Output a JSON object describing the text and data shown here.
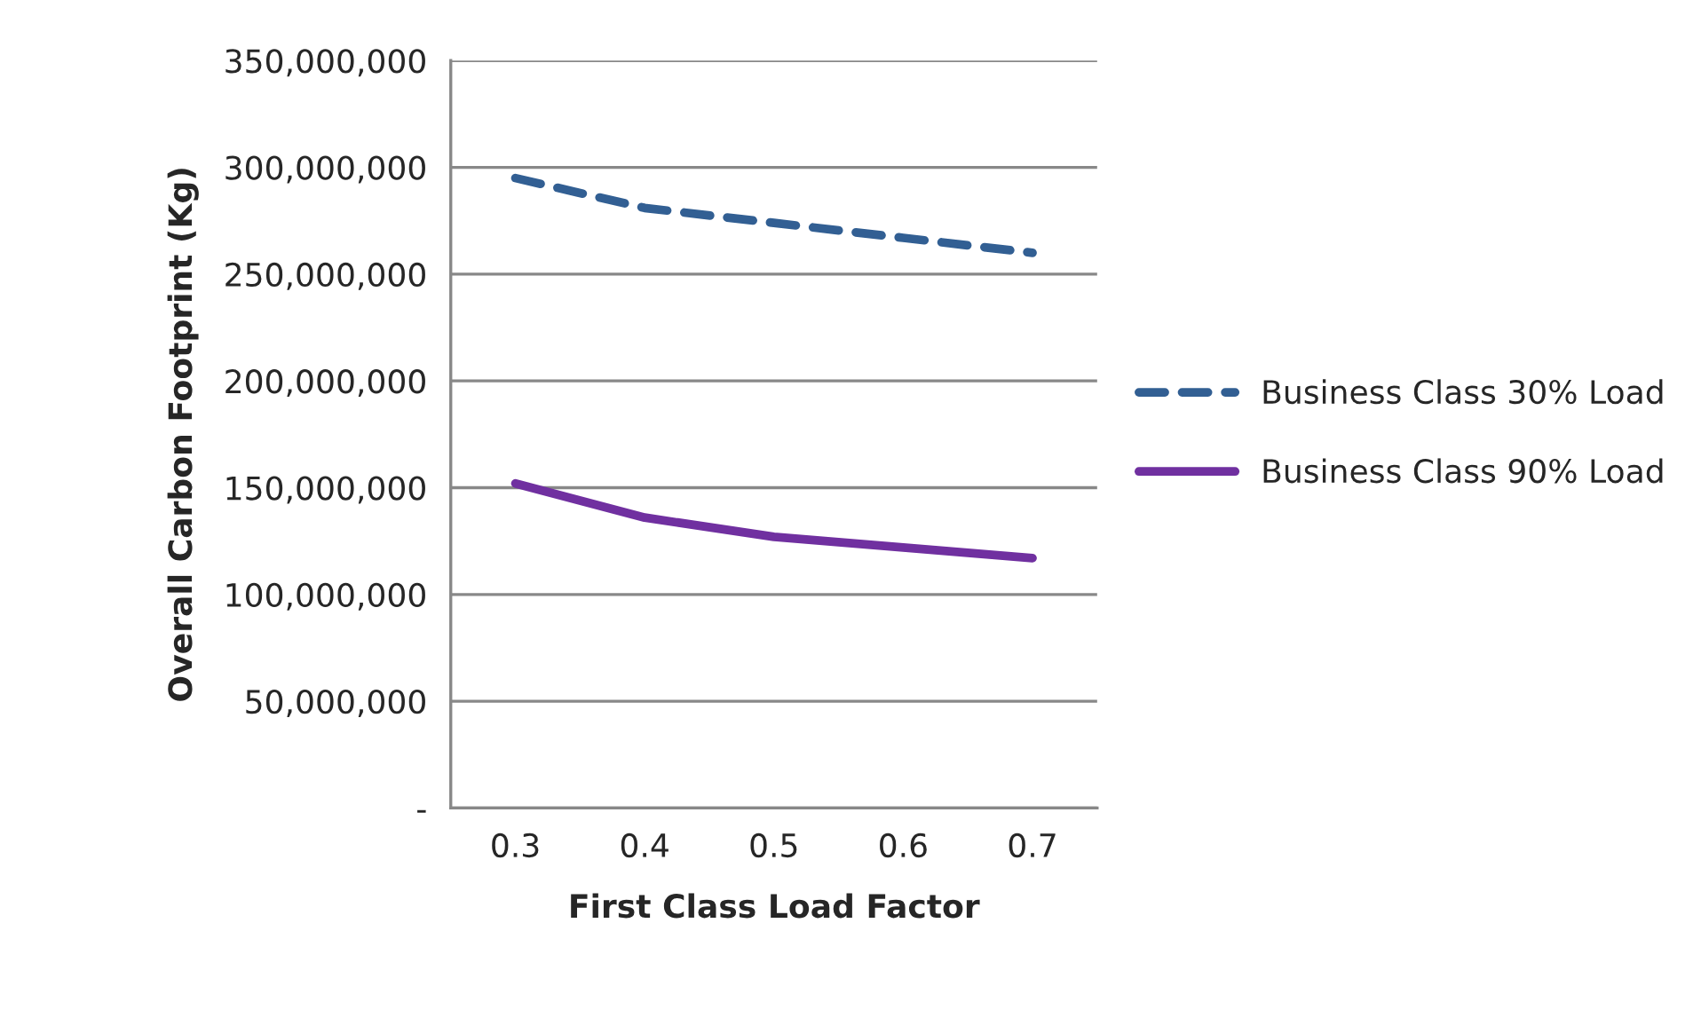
{
  "chart_data": {
    "type": "line",
    "xlabel": "First Class Load Factor",
    "ylabel": "Overall Carbon Footprint (Kg)",
    "categories": [
      "0.3",
      "0.4",
      "0.5",
      "0.6",
      "0.7"
    ],
    "series": [
      {
        "name": "Business Class 30% Load",
        "color": "#325f93",
        "line_style": "dashed",
        "values": [
          295000000,
          281000000,
          274000000,
          267000000,
          260000000
        ]
      },
      {
        "name": "Business Class 90% Load",
        "color": "#7030a0",
        "line_style": "solid",
        "values": [
          152000000,
          136000000,
          127000000,
          122000000,
          117000000
        ]
      }
    ],
    "ylim": [
      0,
      350000000
    ],
    "yticks": [
      {
        "value": 0,
        "label": "-"
      },
      {
        "value": 50000000,
        "label": "50,000,000"
      },
      {
        "value": 100000000,
        "label": "100,000,000"
      },
      {
        "value": 150000000,
        "label": "150,000,000"
      },
      {
        "value": 200000000,
        "label": "200,000,000"
      },
      {
        "value": 250000000,
        "label": "250,000,000"
      },
      {
        "value": 300000000,
        "label": "300,000,000"
      },
      {
        "value": 350000000,
        "label": "350,000,000"
      }
    ],
    "grid": "y",
    "legend": "right"
  }
}
